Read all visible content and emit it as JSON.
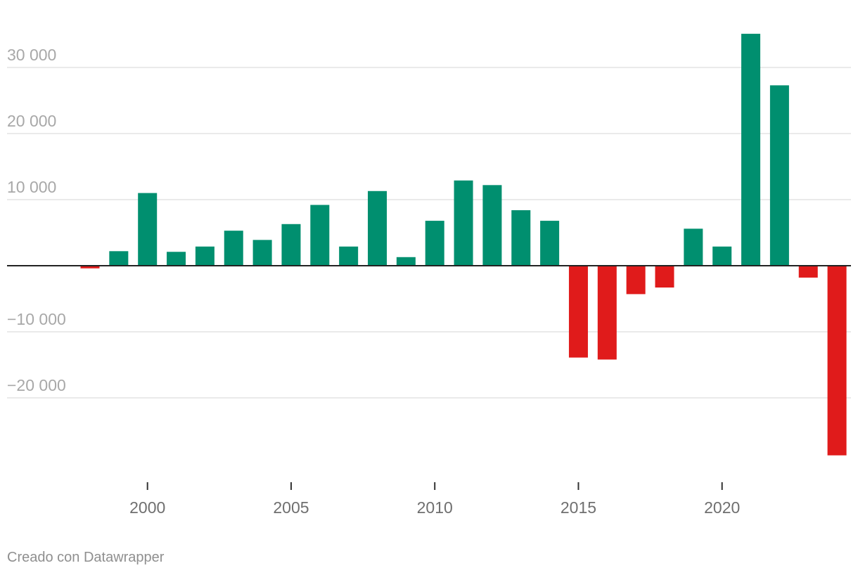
{
  "chart_data": {
    "type": "bar",
    "x": [
      1998,
      1999,
      2000,
      2001,
      2002,
      2003,
      2004,
      2005,
      2006,
      2007,
      2008,
      2009,
      2010,
      2011,
      2012,
      2013,
      2014,
      2015,
      2016,
      2017,
      2018,
      2019,
      2020,
      2021,
      2022,
      2023,
      2024
    ],
    "values": [
      -400,
      2200,
      11000,
      2100,
      2900,
      5300,
      3900,
      6300,
      9200,
      2900,
      11300,
      1300,
      6800,
      12900,
      12200,
      8400,
      6800,
      -13900,
      -14200,
      -4300,
      -3300,
      5600,
      2900,
      35100,
      27300,
      -1800,
      -28700
    ],
    "ylim": [
      -31000,
      37000
    ],
    "yticks": [
      30000,
      20000,
      10000,
      -10000,
      -20000
    ],
    "ytick_labels": [
      "30 000",
      "20 000",
      "10 000",
      "−10 000",
      "−20 000"
    ],
    "xticks": [
      2000,
      2005,
      2010,
      2015,
      2020
    ],
    "xtick_labels": [
      "2000",
      "2005",
      "2010",
      "2015",
      "2020"
    ],
    "title": "",
    "xlabel": "",
    "ylabel": "",
    "grid": true,
    "colors": {
      "positive": "#008f6f",
      "negative": "#e01b1b"
    }
  },
  "footer": {
    "credit": "Creado con Datawrapper"
  }
}
